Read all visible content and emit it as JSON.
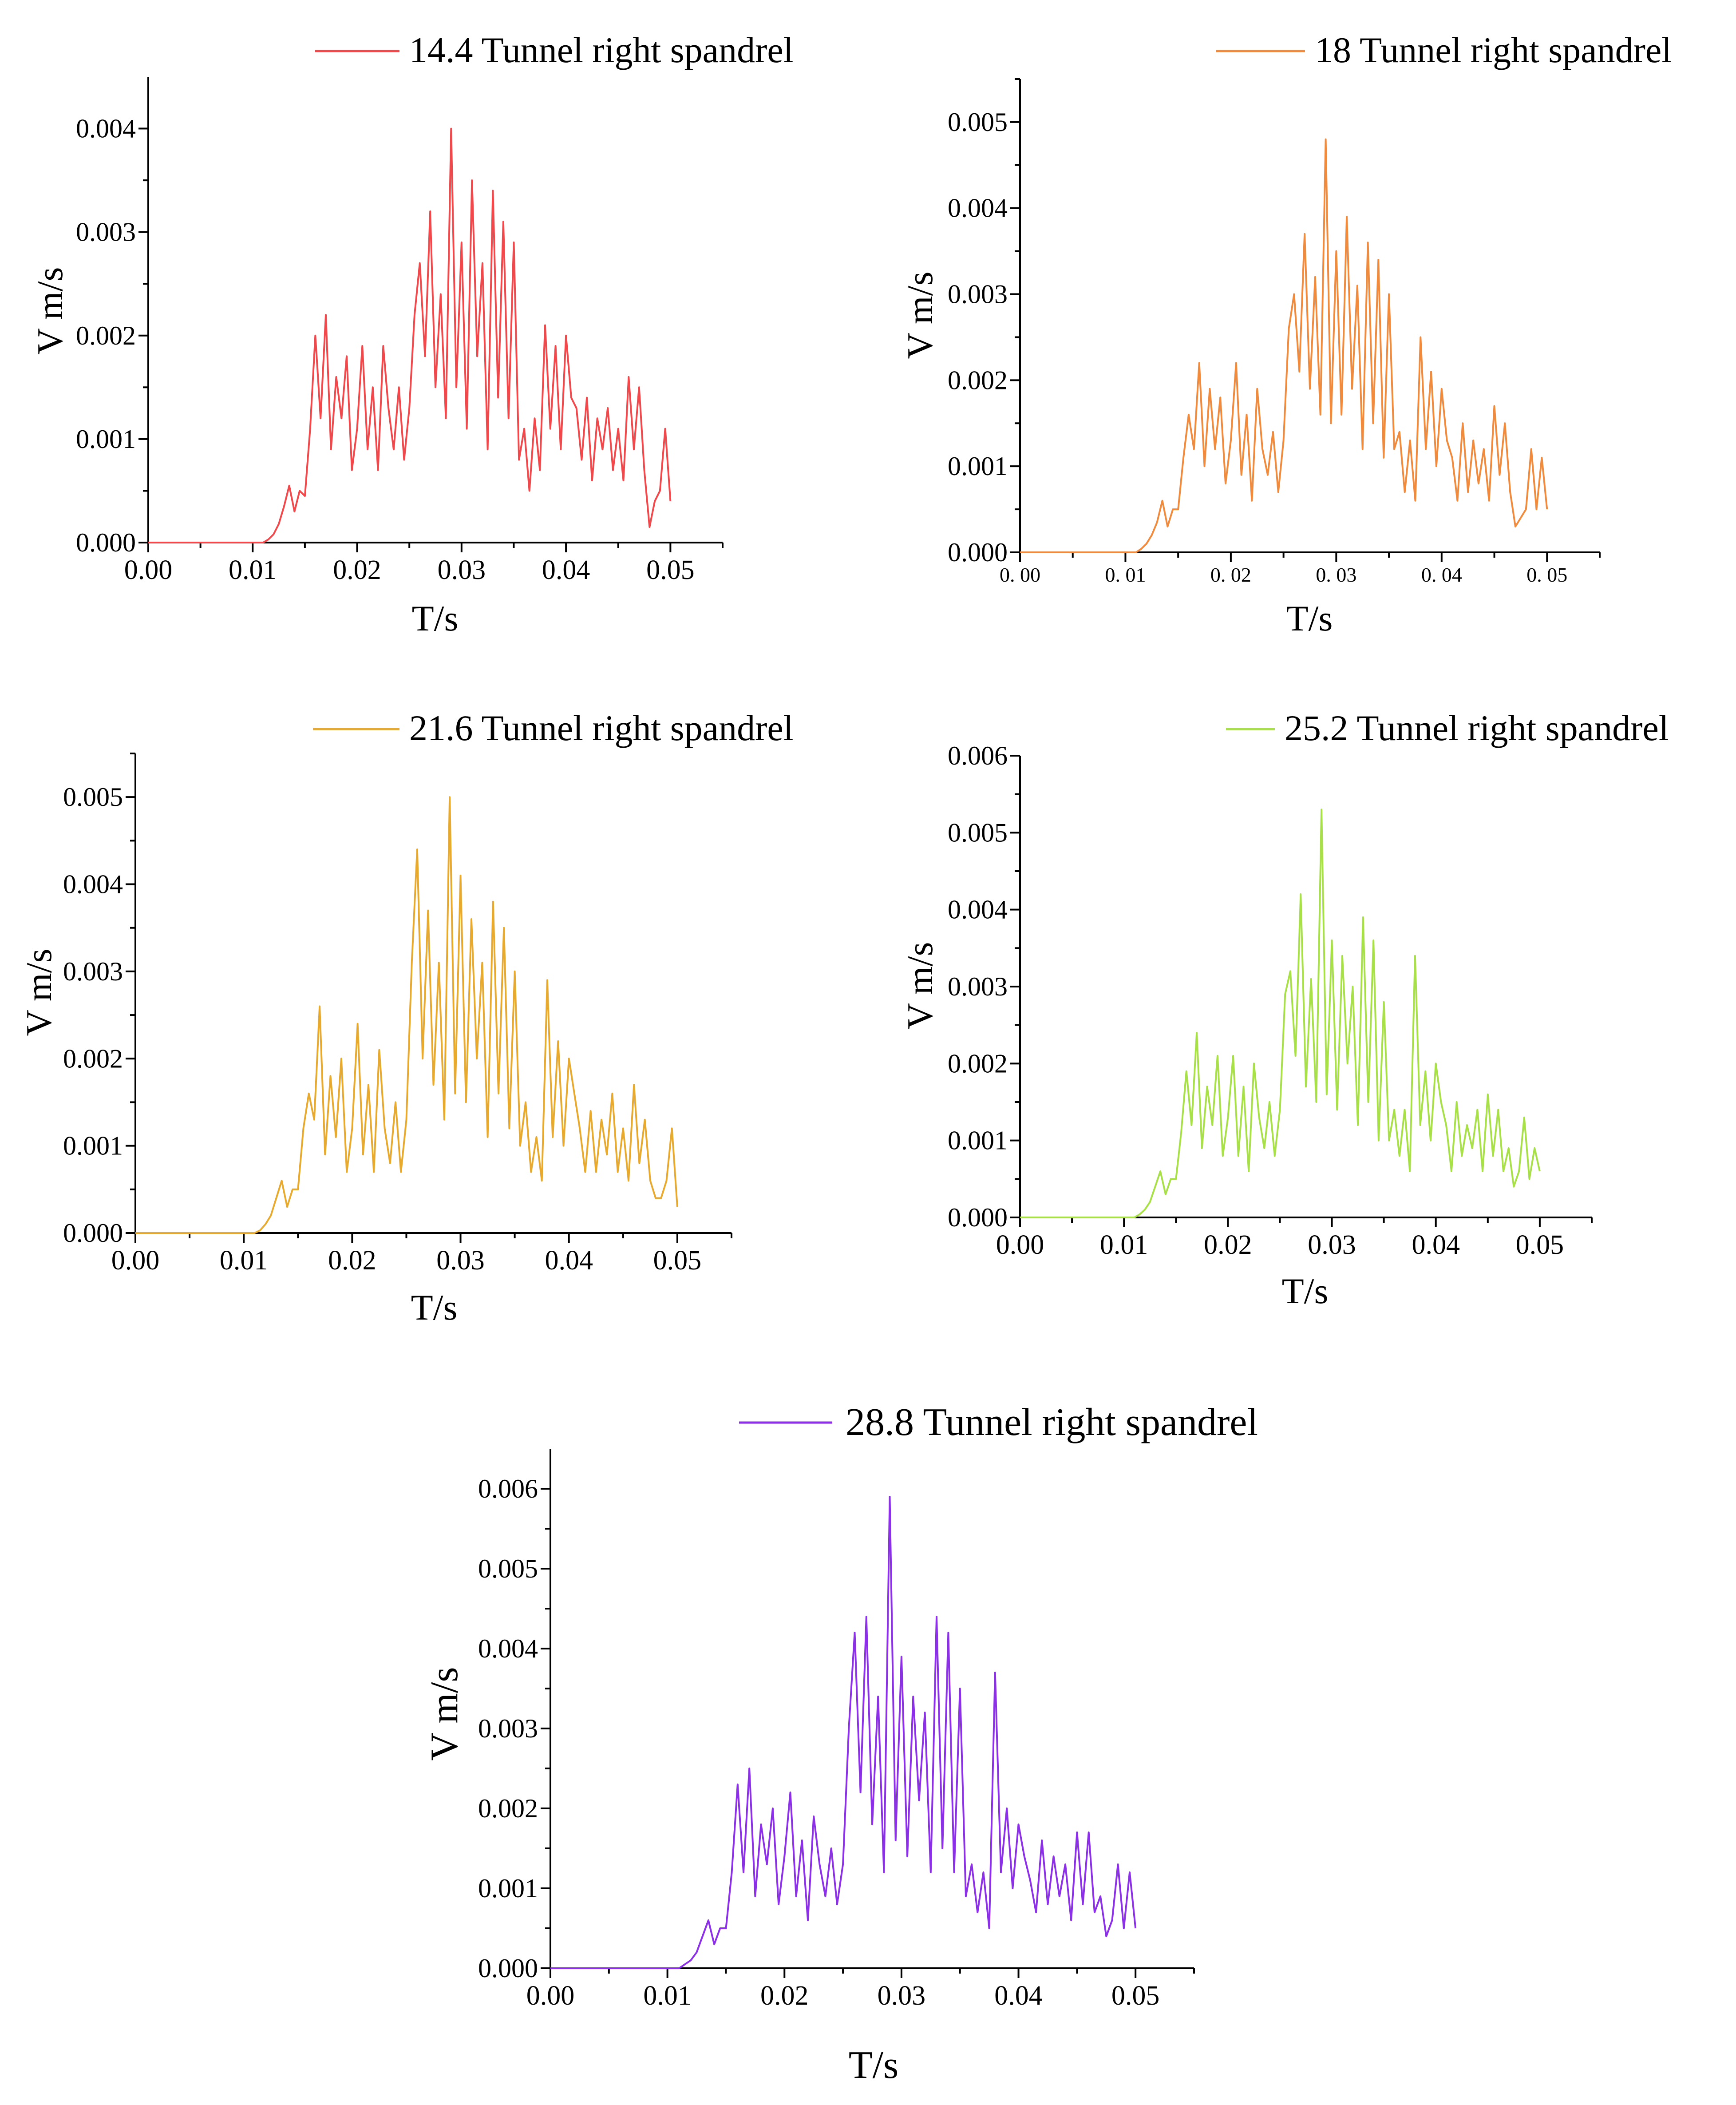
{
  "chart_data": [
    {
      "type": "line",
      "legend": "14.4 Tunnel right spandrel",
      "color": "#f0484b",
      "xlabel": "T/s",
      "ylabel": "V m/s",
      "xlim": [
        0.0,
        0.055
      ],
      "ylim": [
        0.0,
        0.0045
      ],
      "xticks": [
        "0.00",
        "0.01",
        "0.02",
        "0.03",
        "0.04",
        "0.05"
      ],
      "xtick_values": [
        0.0,
        0.01,
        0.02,
        0.03,
        0.04,
        0.05
      ],
      "yticks": [
        "0.000",
        "0.001",
        "0.002",
        "0.003",
        "0.004"
      ],
      "ytick_values": [
        0.0,
        0.001,
        0.002,
        0.003,
        0.004
      ],
      "x": [
        0.0,
        0.011,
        0.0115,
        0.012,
        0.0125,
        0.013,
        0.0135,
        0.014,
        0.0145,
        0.015,
        0.0155,
        0.016,
        0.0165,
        0.017,
        0.0175,
        0.018,
        0.0185,
        0.019,
        0.0195,
        0.02,
        0.0205,
        0.021,
        0.0215,
        0.022,
        0.0225,
        0.023,
        0.0235,
        0.024,
        0.0245,
        0.025,
        0.0255,
        0.026,
        0.0265,
        0.027,
        0.0275,
        0.028,
        0.0285,
        0.029,
        0.0295,
        0.03,
        0.0305,
        0.031,
        0.0315,
        0.032,
        0.0325,
        0.033,
        0.0335,
        0.034,
        0.0345,
        0.035,
        0.0355,
        0.036,
        0.0365,
        0.037,
        0.0375,
        0.038,
        0.0385,
        0.039,
        0.0395,
        0.04,
        0.0405,
        0.041,
        0.0415,
        0.042,
        0.0425,
        0.043,
        0.0435,
        0.044,
        0.0445,
        0.045,
        0.0455,
        0.046,
        0.0465,
        0.047,
        0.0475,
        0.048,
        0.0485,
        0.049,
        0.0495,
        0.05
      ],
      "values": [
        0.0,
        0.0,
        3e-05,
        8e-05,
        0.00018,
        0.00035,
        0.00055,
        0.0003,
        0.0005,
        0.00045,
        0.0011,
        0.002,
        0.0012,
        0.0022,
        0.0009,
        0.0016,
        0.0012,
        0.0018,
        0.0007,
        0.0011,
        0.0019,
        0.0009,
        0.0015,
        0.0007,
        0.0019,
        0.0013,
        0.0009,
        0.0015,
        0.0008,
        0.0013,
        0.0022,
        0.0027,
        0.0018,
        0.0032,
        0.0015,
        0.0024,
        0.0012,
        0.004,
        0.0015,
        0.0029,
        0.0011,
        0.0035,
        0.0018,
        0.0027,
        0.0009,
        0.0034,
        0.0014,
        0.0031,
        0.0012,
        0.0029,
        0.0008,
        0.0011,
        0.0005,
        0.0012,
        0.0007,
        0.0021,
        0.0011,
        0.0019,
        0.0009,
        0.002,
        0.0014,
        0.0013,
        0.0008,
        0.0014,
        0.0006,
        0.0012,
        0.0009,
        0.0013,
        0.0007,
        0.0011,
        0.0006,
        0.0016,
        0.0009,
        0.0015,
        0.0007,
        0.00015,
        0.0004,
        0.0005,
        0.0011,
        0.0004
      ]
    },
    {
      "type": "line",
      "legend": "18 Tunnel right spandrel",
      "color": "#f08a3c",
      "xlabel": "T/s",
      "ylabel": "V m/s",
      "xlim": [
        0.0,
        0.055
      ],
      "ylim": [
        0.0,
        0.0055
      ],
      "xticks": [
        "0. 00",
        "0. 01",
        "0. 02",
        "0. 03",
        "0. 04",
        "0. 05"
      ],
      "xtick_values": [
        0.0,
        0.01,
        0.02,
        0.03,
        0.04,
        0.05
      ],
      "yticks": [
        "0.000",
        "0.001",
        "0.002",
        "0.003",
        "0.004",
        "0.005"
      ],
      "ytick_values": [
        0.0,
        0.001,
        0.002,
        0.003,
        0.004,
        0.005
      ],
      "x": [
        0.0,
        0.011,
        0.0115,
        0.012,
        0.0125,
        0.013,
        0.0135,
        0.014,
        0.0145,
        0.015,
        0.0155,
        0.016,
        0.0165,
        0.017,
        0.0175,
        0.018,
        0.0185,
        0.019,
        0.0195,
        0.02,
        0.0205,
        0.021,
        0.0215,
        0.022,
        0.0225,
        0.023,
        0.0235,
        0.024,
        0.0245,
        0.025,
        0.0255,
        0.026,
        0.0265,
        0.027,
        0.0275,
        0.028,
        0.0285,
        0.029,
        0.0295,
        0.03,
        0.0305,
        0.031,
        0.0315,
        0.032,
        0.0325,
        0.033,
        0.0335,
        0.034,
        0.0345,
        0.035,
        0.0355,
        0.036,
        0.0365,
        0.037,
        0.0375,
        0.038,
        0.0385,
        0.039,
        0.0395,
        0.04,
        0.0405,
        0.041,
        0.0415,
        0.042,
        0.0425,
        0.043,
        0.0435,
        0.044,
        0.0445,
        0.045,
        0.0455,
        0.046,
        0.0465,
        0.047,
        0.0475,
        0.048,
        0.0485,
        0.049,
        0.0495,
        0.05
      ],
      "values": [
        0.0,
        0.0,
        4e-05,
        0.0001,
        0.0002,
        0.00035,
        0.0006,
        0.0003,
        0.0005,
        0.0005,
        0.0011,
        0.0016,
        0.0012,
        0.0022,
        0.001,
        0.0019,
        0.0012,
        0.0018,
        0.0008,
        0.0013,
        0.0022,
        0.0009,
        0.0016,
        0.0006,
        0.0019,
        0.0012,
        0.0009,
        0.0014,
        0.0007,
        0.0013,
        0.0026,
        0.003,
        0.0021,
        0.0037,
        0.0019,
        0.0032,
        0.0016,
        0.0048,
        0.0015,
        0.0035,
        0.0016,
        0.0039,
        0.0019,
        0.0031,
        0.0012,
        0.0036,
        0.0015,
        0.0034,
        0.0011,
        0.003,
        0.0012,
        0.0014,
        0.0007,
        0.0013,
        0.0006,
        0.0025,
        0.0012,
        0.0021,
        0.001,
        0.0019,
        0.0013,
        0.0011,
        0.0006,
        0.0015,
        0.0007,
        0.0013,
        0.0008,
        0.0012,
        0.0006,
        0.0017,
        0.0009,
        0.0015,
        0.0007,
        0.0003,
        0.0004,
        0.0005,
        0.0012,
        0.0005,
        0.0011,
        0.0005
      ]
    },
    {
      "type": "line",
      "legend": "21.6 Tunnel right spandrel",
      "color": "#e8aa2e",
      "xlabel": "T/s",
      "ylabel": "V m/s",
      "xlim": [
        0.0,
        0.055
      ],
      "ylim": [
        0.0,
        0.0055
      ],
      "xticks": [
        "0.00",
        "0.01",
        "0.02",
        "0.03",
        "0.04",
        "0.05"
      ],
      "xtick_values": [
        0.0,
        0.01,
        0.02,
        0.03,
        0.04,
        0.05
      ],
      "yticks": [
        "0.000",
        "0.001",
        "0.002",
        "0.003",
        "0.004",
        "0.005"
      ],
      "ytick_values": [
        0.0,
        0.001,
        0.002,
        0.003,
        0.004,
        0.005
      ],
      "x": [
        0.0,
        0.011,
        0.0115,
        0.012,
        0.0125,
        0.013,
        0.0135,
        0.014,
        0.0145,
        0.015,
        0.0155,
        0.016,
        0.0165,
        0.017,
        0.0175,
        0.018,
        0.0185,
        0.019,
        0.0195,
        0.02,
        0.0205,
        0.021,
        0.0215,
        0.022,
        0.0225,
        0.023,
        0.0235,
        0.024,
        0.0245,
        0.025,
        0.0255,
        0.026,
        0.0265,
        0.027,
        0.0275,
        0.028,
        0.0285,
        0.029,
        0.0295,
        0.03,
        0.0305,
        0.031,
        0.0315,
        0.032,
        0.0325,
        0.033,
        0.0335,
        0.034,
        0.0345,
        0.035,
        0.0355,
        0.036,
        0.0365,
        0.037,
        0.0375,
        0.038,
        0.0385,
        0.039,
        0.0395,
        0.04,
        0.0405,
        0.041,
        0.0415,
        0.042,
        0.0425,
        0.043,
        0.0435,
        0.044,
        0.0445,
        0.045,
        0.0455,
        0.046,
        0.0465,
        0.047,
        0.0475,
        0.048,
        0.0485,
        0.049,
        0.0495,
        0.05
      ],
      "values": [
        0.0,
        0.0,
        3e-05,
        0.0001,
        0.0002,
        0.0004,
        0.0006,
        0.0003,
        0.0005,
        0.0005,
        0.0012,
        0.0016,
        0.0013,
        0.0026,
        0.0009,
        0.0018,
        0.0011,
        0.002,
        0.0007,
        0.0012,
        0.0024,
        0.0009,
        0.0017,
        0.0007,
        0.0021,
        0.0012,
        0.0008,
        0.0015,
        0.0007,
        0.0013,
        0.0031,
        0.0044,
        0.002,
        0.0037,
        0.0017,
        0.0031,
        0.0013,
        0.005,
        0.0016,
        0.0041,
        0.0015,
        0.0036,
        0.002,
        0.0031,
        0.0011,
        0.0038,
        0.0016,
        0.0035,
        0.0012,
        0.003,
        0.001,
        0.0015,
        0.0007,
        0.0011,
        0.0006,
        0.0029,
        0.0011,
        0.0022,
        0.001,
        0.002,
        0.0016,
        0.0012,
        0.0007,
        0.0014,
        0.0007,
        0.0013,
        0.0009,
        0.0016,
        0.0007,
        0.0012,
        0.0006,
        0.0017,
        0.0008,
        0.0013,
        0.0006,
        0.0004,
        0.0004,
        0.0006,
        0.0012,
        0.0003
      ]
    },
    {
      "type": "line",
      "legend": "25.2 Tunnel right spandrel",
      "color": "#a8e048",
      "xlabel": "T/s",
      "ylabel": "V m/s",
      "xlim": [
        0.0,
        0.055
      ],
      "ylim": [
        0.0,
        0.006
      ],
      "xticks": [
        "0.00",
        "0.01",
        "0.02",
        "0.03",
        "0.04",
        "0.05"
      ],
      "xtick_values": [
        0.0,
        0.01,
        0.02,
        0.03,
        0.04,
        0.05
      ],
      "yticks": [
        "0.000",
        "0.001",
        "0.002",
        "0.003",
        "0.004",
        "0.005",
        "0.006"
      ],
      "ytick_values": [
        0.0,
        0.001,
        0.002,
        0.003,
        0.004,
        0.005,
        0.006
      ],
      "x": [
        0.0,
        0.011,
        0.0115,
        0.012,
        0.0125,
        0.013,
        0.0135,
        0.014,
        0.0145,
        0.015,
        0.0155,
        0.016,
        0.0165,
        0.017,
        0.0175,
        0.018,
        0.0185,
        0.019,
        0.0195,
        0.02,
        0.0205,
        0.021,
        0.0215,
        0.022,
        0.0225,
        0.023,
        0.0235,
        0.024,
        0.0245,
        0.025,
        0.0255,
        0.026,
        0.0265,
        0.027,
        0.0275,
        0.028,
        0.0285,
        0.029,
        0.0295,
        0.03,
        0.0305,
        0.031,
        0.0315,
        0.032,
        0.0325,
        0.033,
        0.0335,
        0.034,
        0.0345,
        0.035,
        0.0355,
        0.036,
        0.0365,
        0.037,
        0.0375,
        0.038,
        0.0385,
        0.039,
        0.0395,
        0.04,
        0.0405,
        0.041,
        0.0415,
        0.042,
        0.0425,
        0.043,
        0.0435,
        0.044,
        0.0445,
        0.045,
        0.0455,
        0.046,
        0.0465,
        0.047,
        0.0475,
        0.048,
        0.0485,
        0.049,
        0.0495,
        0.05
      ],
      "values": [
        0.0,
        0.0,
        4e-05,
        0.0001,
        0.0002,
        0.0004,
        0.0006,
        0.0003,
        0.0005,
        0.0005,
        0.0011,
        0.0019,
        0.0012,
        0.0024,
        0.0009,
        0.0017,
        0.0012,
        0.0021,
        0.0008,
        0.0013,
        0.0021,
        0.0008,
        0.0017,
        0.0006,
        0.002,
        0.0013,
        0.0009,
        0.0015,
        0.0008,
        0.0014,
        0.0029,
        0.0032,
        0.0021,
        0.0042,
        0.0017,
        0.0031,
        0.0015,
        0.0053,
        0.0016,
        0.0036,
        0.0014,
        0.0034,
        0.002,
        0.003,
        0.0012,
        0.0039,
        0.0015,
        0.0036,
        0.001,
        0.0028,
        0.001,
        0.0014,
        0.0008,
        0.0014,
        0.0006,
        0.0034,
        0.0012,
        0.0019,
        0.001,
        0.002,
        0.0015,
        0.0012,
        0.0006,
        0.0015,
        0.0008,
        0.0012,
        0.0009,
        0.0014,
        0.0006,
        0.0016,
        0.0008,
        0.0014,
        0.0006,
        0.0009,
        0.0004,
        0.0006,
        0.0013,
        0.0005,
        0.0009,
        0.0006
      ]
    },
    {
      "type": "line",
      "legend": "28.8 Tunnel right spandrel",
      "color": "#8c30e8",
      "xlabel": "T/s",
      "ylabel": "V m/s",
      "xlim": [
        0.0,
        0.055
      ],
      "ylim": [
        0.0,
        0.0065
      ],
      "xticks": [
        "0.00",
        "0.01",
        "0.02",
        "0.03",
        "0.04",
        "0.05"
      ],
      "xtick_values": [
        0.0,
        0.01,
        0.02,
        0.03,
        0.04,
        0.05
      ],
      "yticks": [
        "0.000",
        "0.001",
        "0.002",
        "0.003",
        "0.004",
        "0.005",
        "0.006"
      ],
      "ytick_values": [
        0.0,
        0.001,
        0.002,
        0.003,
        0.004,
        0.005,
        0.006
      ],
      "x": [
        0.0,
        0.011,
        0.0115,
        0.012,
        0.0125,
        0.013,
        0.0135,
        0.014,
        0.0145,
        0.015,
        0.0155,
        0.016,
        0.0165,
        0.017,
        0.0175,
        0.018,
        0.0185,
        0.019,
        0.0195,
        0.02,
        0.0205,
        0.021,
        0.0215,
        0.022,
        0.0225,
        0.023,
        0.0235,
        0.024,
        0.0245,
        0.025,
        0.0255,
        0.026,
        0.0265,
        0.027,
        0.0275,
        0.028,
        0.0285,
        0.029,
        0.0295,
        0.03,
        0.0305,
        0.031,
        0.0315,
        0.032,
        0.0325,
        0.033,
        0.0335,
        0.034,
        0.0345,
        0.035,
        0.0355,
        0.036,
        0.0365,
        0.037,
        0.0375,
        0.038,
        0.0385,
        0.039,
        0.0395,
        0.04,
        0.0405,
        0.041,
        0.0415,
        0.042,
        0.0425,
        0.043,
        0.0435,
        0.044,
        0.0445,
        0.045,
        0.0455,
        0.046,
        0.0465,
        0.047,
        0.0475,
        0.048,
        0.0485,
        0.049,
        0.0495,
        0.05
      ],
      "values": [
        0.0,
        0.0,
        5e-05,
        0.0001,
        0.0002,
        0.0004,
        0.0006,
        0.0003,
        0.0005,
        0.0005,
        0.0012,
        0.0023,
        0.0012,
        0.0025,
        0.0009,
        0.0018,
        0.0013,
        0.002,
        0.0008,
        0.0014,
        0.0022,
        0.0009,
        0.0016,
        0.0006,
        0.0019,
        0.0013,
        0.0009,
        0.0015,
        0.0008,
        0.0013,
        0.003,
        0.0042,
        0.0022,
        0.0044,
        0.0018,
        0.0034,
        0.0012,
        0.0059,
        0.0016,
        0.0039,
        0.0014,
        0.0034,
        0.0021,
        0.0032,
        0.0012,
        0.0044,
        0.0015,
        0.0042,
        0.0012,
        0.0035,
        0.0009,
        0.0013,
        0.0007,
        0.0012,
        0.0005,
        0.0037,
        0.0012,
        0.002,
        0.001,
        0.0018,
        0.0014,
        0.0011,
        0.0007,
        0.0016,
        0.0008,
        0.0014,
        0.0009,
        0.0013,
        0.0006,
        0.0017,
        0.0008,
        0.0017,
        0.0007,
        0.0009,
        0.0004,
        0.0006,
        0.0013,
        0.0005,
        0.0012,
        0.0005
      ]
    }
  ]
}
